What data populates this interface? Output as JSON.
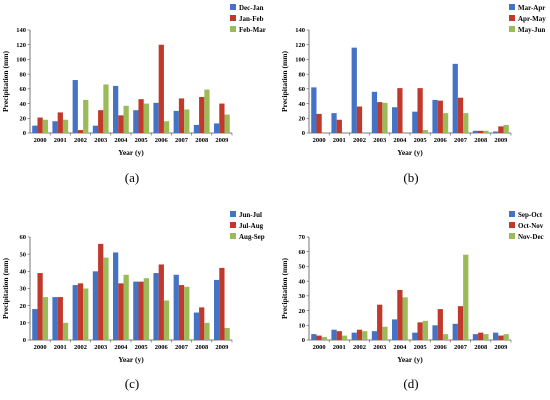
{
  "colors": {
    "s1": "#4472C4",
    "s2": "#C0392B",
    "s3": "#9BBB59"
  },
  "chart_data": [
    {
      "panel": "(a)",
      "type": "bar",
      "categories": [
        "2000",
        "2001",
        "2002",
        "2003",
        "2004",
        "2005",
        "2006",
        "2007",
        "2008",
        "2009"
      ],
      "ylabel": "Precipitation (mm)",
      "xlabel": "Year (y)",
      "ylim": [
        0,
        140
      ],
      "yticks": [
        0,
        20,
        40,
        60,
        80,
        100,
        120,
        140
      ],
      "legend_position": "top-right",
      "series": [
        {
          "name": "Dec-Jan",
          "values": [
            10,
            16,
            72,
            10,
            64,
            31,
            41,
            30,
            11,
            13
          ]
        },
        {
          "name": "Jan-Feb",
          "values": [
            21,
            28,
            4,
            31,
            24,
            46,
            120,
            47,
            49,
            40
          ]
        },
        {
          "name": "Feb-Mar",
          "values": [
            18,
            18,
            45,
            66,
            37,
            40,
            16,
            32,
            59,
            25
          ]
        }
      ]
    },
    {
      "panel": "(b)",
      "type": "bar",
      "categories": [
        "2000",
        "2001",
        "2002",
        "2003",
        "2004",
        "2005",
        "2006",
        "2007",
        "2008",
        "2009"
      ],
      "ylabel": "Precipitation (mm)",
      "xlabel": "Year (y)",
      "ylim": [
        0,
        140
      ],
      "yticks": [
        0,
        20,
        40,
        60,
        80,
        100,
        120,
        140
      ],
      "legend_position": "top-right",
      "series": [
        {
          "name": "Mar-Apr",
          "values": [
            62,
            27,
            116,
            56,
            35,
            29,
            45,
            94,
            3,
            2
          ]
        },
        {
          "name": "Apr-May",
          "values": [
            26,
            18,
            36,
            42,
            61,
            61,
            44,
            48,
            3,
            9
          ]
        },
        {
          "name": "May-Jun",
          "values": [
            0,
            0,
            0,
            41,
            0,
            4,
            27,
            27,
            3,
            11
          ]
        }
      ]
    },
    {
      "panel": "(c)",
      "type": "bar",
      "categories": [
        "2000",
        "2001",
        "2002",
        "2003",
        "2004",
        "2005",
        "2006",
        "2007",
        "2008",
        "2009"
      ],
      "ylabel": "Precipitation (mm)",
      "xlabel": "Year (y)",
      "ylim": [
        0,
        60
      ],
      "yticks": [
        0,
        10,
        20,
        30,
        40,
        50,
        60
      ],
      "legend_position": "top-right",
      "series": [
        {
          "name": "Jun-Jul",
          "values": [
            18,
            25,
            32,
            40,
            51,
            34,
            39,
            38,
            16,
            35
          ]
        },
        {
          "name": "Jul-Aug",
          "values": [
            39,
            25,
            33,
            56,
            33,
            34,
            44,
            32,
            19,
            42
          ]
        },
        {
          "name": "Aug-Sep",
          "values": [
            25,
            10,
            30,
            48,
            38,
            36,
            23,
            31,
            10,
            7
          ]
        }
      ]
    },
    {
      "panel": "(d)",
      "type": "bar",
      "categories": [
        "2000",
        "2001",
        "2002",
        "2003",
        "2004",
        "2005",
        "2006",
        "2007",
        "2008",
        "2009"
      ],
      "ylabel": "Precipitation (mm)",
      "xlabel": "Year (y)",
      "ylim": [
        0,
        70
      ],
      "yticks": [
        0,
        10,
        20,
        30,
        40,
        50,
        60,
        70
      ],
      "legend_position": "top-right",
      "series": [
        {
          "name": "Sep-Oct",
          "values": [
            4,
            7,
            5,
            6,
            14,
            5,
            10,
            11,
            4,
            5
          ]
        },
        {
          "name": "Oct-Nov",
          "values": [
            3,
            6,
            7,
            24,
            34,
            12,
            21,
            23,
            5,
            3
          ]
        },
        {
          "name": "Nov-Dec",
          "values": [
            2,
            3,
            6,
            9,
            29,
            13,
            4,
            58,
            4,
            4
          ]
        }
      ]
    }
  ]
}
